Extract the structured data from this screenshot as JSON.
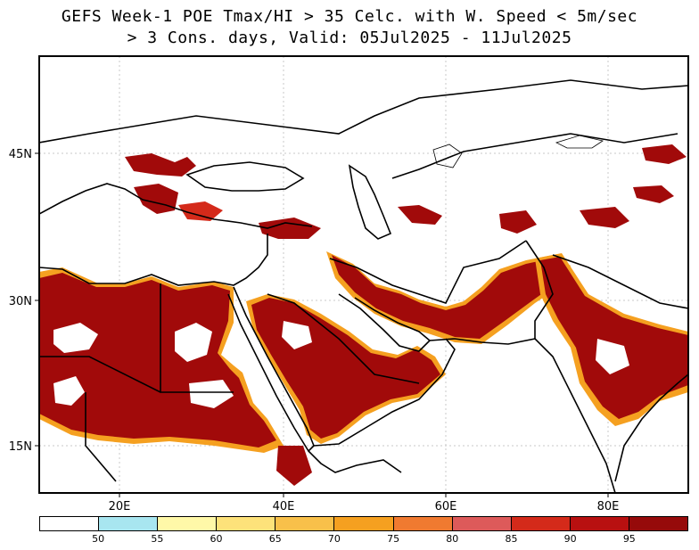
{
  "title": {
    "line1": "GEFS Week-1 POE Tmax/HI > 35 Celc. with W. Speed < 5m/sec",
    "line2": "> 3 Cons. days, Valid: 05Jul2025 - 11Jul2025"
  },
  "axes": {
    "lon_labels": [
      "20E",
      "40E",
      "60E",
      "80E"
    ],
    "lat_labels": [
      "45N",
      "30N",
      "15N"
    ],
    "lon_range": [
      10,
      90
    ],
    "lat_range": [
      10,
      54
    ]
  },
  "legend": {
    "colors": [
      "#ffffff",
      "#a8e6f0",
      "#fff8a8",
      "#fde27a",
      "#f8c04a",
      "#f5a020",
      "#f07a30",
      "#dd5a5a",
      "#d42a1a",
      "#b81010",
      "#960a0a"
    ],
    "ticks": [
      "50",
      "55",
      "60",
      "65",
      "70",
      "75",
      "80",
      "85",
      "90",
      "95"
    ]
  },
  "colors": {
    "high": "#a10a0a",
    "mid": "#d63020",
    "edge": "#f5a020",
    "fringe": "#a8e6f0"
  }
}
